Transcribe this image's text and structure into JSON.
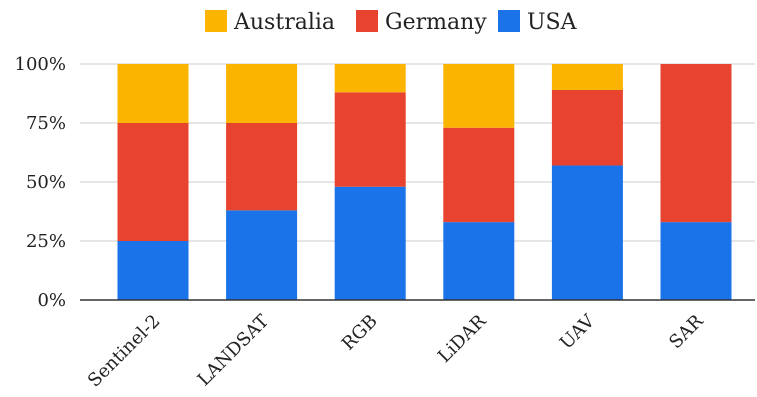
{
  "chart_data": {
    "type": "bar",
    "stacked": true,
    "percent": true,
    "title": "",
    "xlabel": "",
    "ylabel": "",
    "categories": [
      "Sentinel-2",
      "LANDSAT",
      "RGB",
      "LiDAR",
      "UAV",
      "SAR"
    ],
    "series": [
      {
        "name": "USA",
        "color": "#1a73e8",
        "values": [
          25,
          38,
          48,
          33,
          57,
          33
        ]
      },
      {
        "name": "Germany",
        "color": "#e8432f",
        "values": [
          50,
          37,
          40,
          40,
          32,
          67
        ]
      },
      {
        "name": "Australia",
        "color": "#fbb400",
        "values": [
          25,
          25,
          12,
          27,
          11,
          0
        ]
      }
    ],
    "legend_order": [
      "Australia",
      "Germany",
      "USA"
    ],
    "legend_position": "top",
    "ylim": [
      0,
      100
    ],
    "yticks": [
      "0%",
      "25%",
      "50%",
      "75%",
      "100%"
    ],
    "grid": true
  }
}
